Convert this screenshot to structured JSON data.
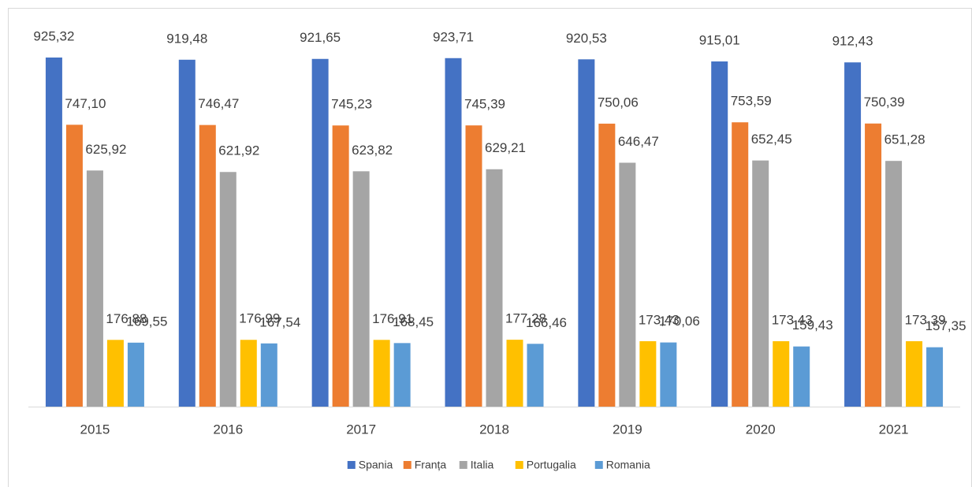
{
  "chart_data": {
    "type": "bar",
    "categories": [
      "2015",
      "2016",
      "2017",
      "2018",
      "2019",
      "2020",
      "2021"
    ],
    "series": [
      {
        "name": "Spania",
        "color": "#4472c4",
        "values": [
          925.32,
          919.48,
          921.65,
          923.71,
          920.53,
          915.01,
          912.43
        ],
        "value_labels": [
          "925,32",
          "919,48",
          "921,65",
          "923,71",
          "920,53",
          "915,01",
          "912,43"
        ]
      },
      {
        "name": "Franța",
        "color": "#ed7d31",
        "values": [
          747.1,
          746.47,
          745.23,
          745.39,
          750.06,
          753.59,
          750.39
        ],
        "value_labels": [
          "747,10",
          "746,47",
          "745,23",
          "745,39",
          "750,06",
          "753,59",
          "750,39"
        ]
      },
      {
        "name": "Italia",
        "color": "#a5a5a5",
        "values": [
          625.92,
          621.92,
          623.82,
          629.21,
          646.47,
          652.45,
          651.28
        ],
        "value_labels": [
          "625,92",
          "621,92",
          "623,82",
          "629,21",
          "646,47",
          "652,45",
          "651,28"
        ]
      },
      {
        "name": "Portugalia",
        "color": "#ffc000",
        "values": [
          176.88,
          176.99,
          176.91,
          177.28,
          173.43,
          173.43,
          173.39
        ],
        "value_labels": [
          "176,88",
          "176,99",
          "176,91",
          "177,28",
          "173,43",
          "173,43",
          "173,39"
        ]
      },
      {
        "name": "Romania",
        "color": "#5b9bd5",
        "values": [
          169.55,
          167.54,
          168.45,
          166.46,
          170.06,
          159.43,
          157.35
        ],
        "value_labels": [
          "169,55",
          "167,54",
          "168,45",
          "166,46",
          "170,06",
          "159,43",
          "157,35"
        ]
      }
    ],
    "legend": "bottom"
  }
}
